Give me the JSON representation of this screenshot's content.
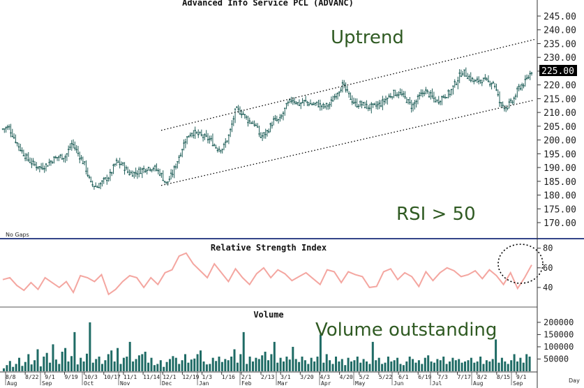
{
  "chart_data": [
    {
      "type": "candlestick",
      "title": "Advanced Info Service PCL (ADVANC)",
      "ylim": [
        165,
        250
      ],
      "yticks": [
        "245.00",
        "240.00",
        "235.00",
        "230.00",
        "225.00",
        "220.00",
        "215.00",
        "210.00",
        "205.00",
        "200.00",
        "195.00",
        "190.00",
        "185.00",
        "180.00",
        "175.00",
        "170.00"
      ],
      "last_price": "225.00",
      "note": "No Gaps",
      "annotations": [
        "Uptrend",
        "RSI > 50"
      ],
      "channel": {
        "upper": {
          "from": [
            "12/1",
            203.5
          ],
          "to": [
            "9/1",
            236.5
          ]
        },
        "lower": {
          "from": [
            "12/1",
            183.5
          ],
          "to": [
            "9/1",
            214.5
          ]
        }
      },
      "close_path": [
        [
          0,
          204
        ],
        [
          4,
          204.5
        ],
        [
          8,
          200
        ],
        [
          12,
          196
        ],
        [
          16,
          193
        ],
        [
          20,
          191
        ],
        [
          24,
          190
        ],
        [
          28,
          191
        ],
        [
          32,
          193
        ],
        [
          36,
          194
        ],
        [
          40,
          194
        ],
        [
          44,
          199
        ],
        [
          48,
          195
        ],
        [
          52,
          191
        ],
        [
          56,
          184
        ],
        [
          60,
          183
        ],
        [
          64,
          185
        ],
        [
          68,
          187
        ],
        [
          72,
          192
        ],
        [
          76,
          191
        ],
        [
          80,
          188
        ],
        [
          84,
          188
        ],
        [
          88,
          189
        ],
        [
          92,
          190
        ],
        [
          96,
          190
        ],
        [
          100,
          188
        ],
        [
          104,
          184
        ],
        [
          108,
          188
        ],
        [
          112,
          194
        ],
        [
          116,
          200
        ],
        [
          120,
          203
        ],
        [
          124,
          202
        ],
        [
          128,
          201
        ],
        [
          132,
          200
        ],
        [
          136,
          197
        ],
        [
          140,
          197
        ],
        [
          144,
          202
        ],
        [
          148,
          211
        ],
        [
          152,
          210
        ],
        [
          156,
          207
        ],
        [
          160,
          206
        ],
        [
          164,
          201
        ],
        [
          168,
          203
        ],
        [
          172,
          207
        ],
        [
          176,
          207
        ],
        [
          180,
          212
        ],
        [
          184,
          215
        ],
        [
          188,
          213
        ],
        [
          192,
          214
        ],
        [
          196,
          213
        ],
        [
          200,
          213
        ],
        [
          204,
          212
        ],
        [
          208,
          213
        ],
        [
          212,
          217
        ],
        [
          216,
          220
        ],
        [
          220,
          216
        ],
        [
          224,
          213
        ],
        [
          228,
          213
        ],
        [
          232,
          212
        ],
        [
          236,
          212
        ],
        [
          240,
          213
        ],
        [
          244,
          215
        ],
        [
          248,
          217
        ],
        [
          252,
          217
        ],
        [
          256,
          215
        ],
        [
          260,
          212
        ],
        [
          264,
          215
        ],
        [
          268,
          218
        ],
        [
          272,
          216
        ],
        [
          276,
          214
        ],
        [
          280,
          216
        ],
        [
          284,
          217
        ],
        [
          288,
          221
        ],
        [
          292,
          225
        ],
        [
          296,
          223
        ],
        [
          300,
          221
        ],
        [
          304,
          222
        ],
        [
          308,
          221
        ],
        [
          312,
          221
        ],
        [
          316,
          213
        ],
        [
          320,
          212
        ],
        [
          324,
          214
        ],
        [
          328,
          219
        ],
        [
          332,
          221
        ],
        [
          336,
          225
        ]
      ],
      "xticks_top": [
        "8/8",
        "8/22",
        "9/1",
        "9/19",
        "10/3",
        "10/17",
        "11/1",
        "11/14",
        "12/1",
        "12/19",
        "1/3",
        "1/16",
        "2/1",
        "2/13",
        "3/1",
        "3/20",
        "4/3",
        "4/20",
        "5/2",
        "5/22",
        "6/1",
        "6/19",
        "7/3",
        "7/17",
        "8/2",
        "8/15",
        "9/1"
      ],
      "xticks_bottom": [
        "Aug",
        "Sep",
        "Oct",
        "Nov",
        "Dec",
        "Jan",
        "Feb",
        "Mar",
        "Apr",
        "May",
        "Jun",
        "Jul",
        "Aug",
        "Sep"
      ],
      "x_unit": "Day"
    },
    {
      "type": "line",
      "title": "Relative Strength Index",
      "ylim": [
        30,
        84
      ],
      "yticks": [
        "80",
        "60",
        "40"
      ],
      "color": "#f4a6a0",
      "series": [
        {
          "values": [
            48,
            50,
            42,
            37,
            45,
            38,
            50,
            45,
            40,
            46,
            35,
            52,
            50,
            46,
            53,
            33,
            38,
            46,
            52,
            50,
            40,
            50,
            43,
            55,
            58,
            72,
            75,
            64,
            57,
            50,
            64,
            55,
            46,
            59,
            50,
            43,
            54,
            60,
            50,
            58,
            54,
            47,
            51,
            55,
            49,
            43,
            58,
            56,
            45,
            56,
            53,
            51,
            40,
            41,
            56,
            59,
            48,
            55,
            51,
            41,
            56,
            47,
            55,
            60,
            57,
            51,
            53,
            57,
            49,
            58,
            52,
            43,
            55,
            39,
            50,
            63
          ]
        }
      ],
      "annotation": "RSI > 50"
    },
    {
      "type": "bar",
      "title": "Volume",
      "ylim": [
        0,
        210000
      ],
      "yticks": [
        "200000",
        "150000",
        "100000",
        "50000"
      ],
      "color": "#1f6b65",
      "annotation": "Volume outstanding",
      "series": [
        {
          "values": [
            12000,
            25000,
            42000,
            18000,
            30000,
            55000,
            22000,
            38000,
            70000,
            28000,
            45000,
            90000,
            20000,
            60000,
            75000,
            35000,
            110000,
            48000,
            30000,
            80000,
            95000,
            40000,
            62000,
            160000,
            28000,
            55000,
            40000,
            72000,
            200000,
            35000,
            50000,
            60000,
            30000,
            45000,
            70000,
            85000,
            40000,
            95000,
            30000,
            55000,
            60000,
            120000,
            40000,
            50000,
            65000,
            70000,
            80000,
            35000,
            55000,
            25000,
            30000,
            45000,
            18000,
            38000,
            50000,
            62000,
            55000,
            30000,
            45000,
            70000,
            35000,
            48000,
            52000,
            70000,
            85000,
            40000,
            28000,
            30000,
            55000,
            42000,
            60000,
            38000,
            50000,
            45000,
            60000,
            90000,
            35000,
            70000,
            160000,
            30000,
            60000,
            40000,
            55000,
            50000,
            65000,
            80000,
            45000,
            70000,
            120000,
            35000,
            55000,
            40000,
            60000,
            48000,
            100000,
            50000,
            38000,
            60000,
            45000,
            30000,
            55000,
            40000,
            60000,
            150000,
            35000,
            70000,
            45000,
            30000,
            60000,
            40000,
            50000,
            25000,
            55000,
            40000,
            45000,
            60000,
            35000,
            50000,
            40000,
            30000,
            120000,
            45000,
            55000,
            30000,
            35000,
            60000,
            40000,
            45000,
            55000,
            30000,
            25000,
            40000,
            60000,
            50000,
            35000,
            45000,
            30000,
            55000,
            65000,
            40000,
            35000,
            50000,
            45000,
            60000,
            30000,
            40000,
            55000,
            45000,
            50000,
            35000,
            40000,
            45000,
            55000,
            35000,
            40000,
            60000,
            30000,
            45000,
            40000,
            50000,
            130000,
            35000,
            55000,
            40000,
            30000,
            45000,
            70000,
            40000,
            55000,
            35000,
            70000,
            60000
          ]
        }
      ]
    }
  ]
}
